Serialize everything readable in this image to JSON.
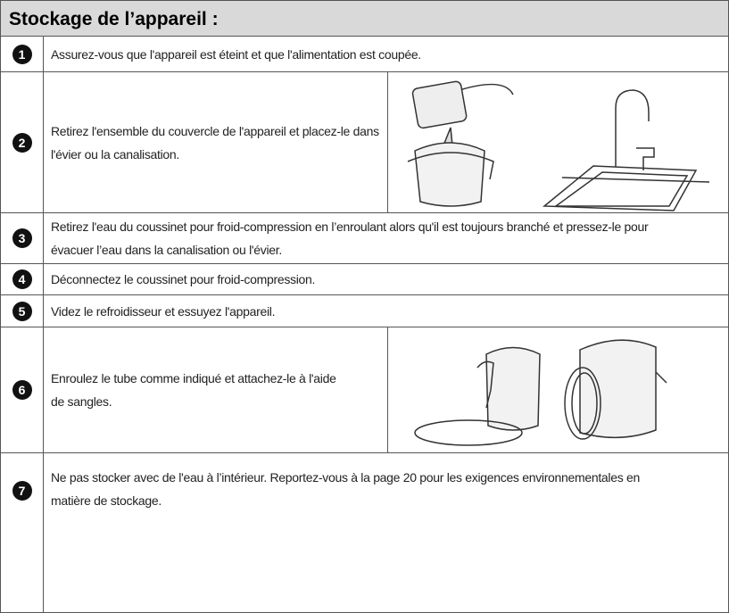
{
  "header": {
    "title": "Stockage de l’appareil :"
  },
  "steps": [
    {
      "number": "1",
      "text": "Assurez-vous que l'appareil est éteint et que l'alimentation est coupée."
    },
    {
      "number": "2",
      "text": "Retirez l'ensemble du couvercle de l'appareil et placez-le dans l'évier ou la canalisation."
    },
    {
      "number": "3",
      "text": "Retirez l'eau du coussinet pour froid-compression en l’enroulant alors qu'il est toujours branché et pressez-le pour évacuer l’eau dans la canalisation ou l'évier."
    },
    {
      "number": "4",
      "text": "Déconnectez le coussinet pour froid-compression."
    },
    {
      "number": "5",
      "text": "Videz le refroidisseur et essuyez l'appareil."
    },
    {
      "number": "6",
      "text": "Enroulez le tube comme indiqué et attachez-le à l'aide de sangles."
    },
    {
      "number": "7",
      "text": "Ne pas stocker avec de l'eau à l’intérieur. Reportez-vous à la page 20 pour les exigences environnementales en matière de stockage."
    }
  ]
}
